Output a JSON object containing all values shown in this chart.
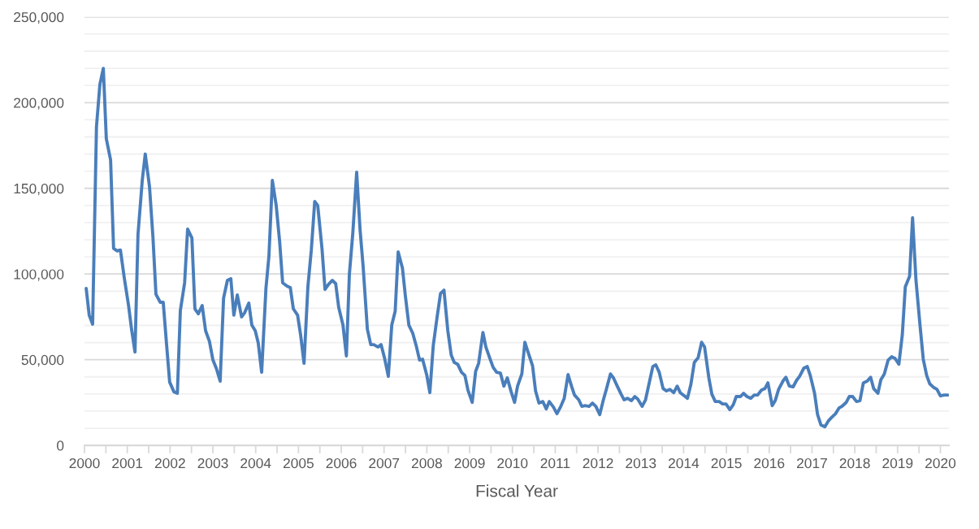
{
  "chart_data": {
    "type": "line",
    "xlabel": "Fiscal Year",
    "xlim": [
      2000,
      2020.2
    ],
    "xticks": [
      2000,
      {
        "value": 2000.5,
        "label": null
      },
      2001,
      {
        "value": 2001.5,
        "label": null
      },
      2002,
      {
        "value": 2002.5,
        "label": null
      },
      2003,
      {
        "value": 2003.5,
        "label": null
      },
      2004,
      {
        "value": 2004.5,
        "label": null
      },
      2005,
      {
        "value": 2005.5,
        "label": null
      },
      2006,
      {
        "value": 2006.5,
        "label": null
      },
      2007,
      {
        "value": 2007.5,
        "label": null
      },
      2008,
      {
        "value": 2008.5,
        "label": null
      },
      2009,
      {
        "value": 2009.5,
        "label": null
      },
      2010,
      {
        "value": 2010.5,
        "label": null
      },
      2011,
      {
        "value": 2011.5,
        "label": null
      },
      2012,
      {
        "value": 2012.5,
        "label": null
      },
      2013,
      {
        "value": 2013.5,
        "label": null
      },
      2014,
      {
        "value": 2014.5,
        "label": null
      },
      2015,
      {
        "value": 2015.5,
        "label": null
      },
      2016,
      {
        "value": 2016.5,
        "label": null
      },
      2017,
      {
        "value": 2017.5,
        "label": null
      },
      2018,
      {
        "value": 2018.5,
        "label": null
      },
      2019,
      {
        "value": 2019.5,
        "label": null
      },
      2020
    ],
    "ylim": [
      0,
      250000
    ],
    "yticks": [
      {
        "value": 0,
        "label": "0"
      },
      {
        "value": 10000,
        "label": null
      },
      {
        "value": 20000,
        "label": null
      },
      {
        "value": 30000,
        "label": null
      },
      {
        "value": 40000,
        "label": null
      },
      {
        "value": 50000,
        "label": "50,000"
      },
      {
        "value": 60000,
        "label": null
      },
      {
        "value": 70000,
        "label": null
      },
      {
        "value": 80000,
        "label": null
      },
      {
        "value": 90000,
        "label": null
      },
      {
        "value": 100000,
        "label": "100,000"
      },
      {
        "value": 110000,
        "label": null
      },
      {
        "value": 120000,
        "label": null
      },
      {
        "value": 130000,
        "label": null
      },
      {
        "value": 140000,
        "label": null
      },
      {
        "value": 150000,
        "label": "150,000"
      },
      {
        "value": 160000,
        "label": null
      },
      {
        "value": 170000,
        "label": null
      },
      {
        "value": 180000,
        "label": null
      },
      {
        "value": 190000,
        "label": null
      },
      {
        "value": 200000,
        "label": "200,000"
      },
      {
        "value": 210000,
        "label": null
      },
      {
        "value": 220000,
        "label": null
      },
      {
        "value": 230000,
        "label": null
      },
      {
        "value": 240000,
        "label": null
      },
      {
        "value": 250000,
        "label": "250,000"
      }
    ],
    "grid": "y",
    "marker": "none",
    "line_style": "solid",
    "series": [
      {
        "color": "#4a7ebb",
        "x": [
          2000.04,
          2000.11,
          2000.19,
          2000.28,
          2000.36,
          2000.44,
          2000.51,
          2000.61,
          2000.68,
          2000.76,
          2000.84,
          2000.93,
          2001.03,
          2001.1,
          2001.18,
          2001.25,
          2001.35,
          2001.42,
          2001.52,
          2001.6,
          2001.67,
          2001.77,
          2001.84,
          2001.92,
          2001.99,
          2002.09,
          2002.17,
          2002.24,
          2002.34,
          2002.41,
          2002.51,
          2002.58,
          2002.66,
          2002.75,
          2002.83,
          2002.92,
          2003.0,
          2003.08,
          2003.17,
          2003.25,
          2003.34,
          2003.42,
          2003.49,
          2003.57,
          2003.67,
          2003.74,
          2003.84,
          2003.91,
          2003.99,
          2004.06,
          2004.14,
          2004.24,
          2004.31,
          2004.39,
          2004.48,
          2004.56,
          2004.63,
          2004.73,
          2004.81,
          2004.88,
          2004.98,
          2005.05,
          2005.13,
          2005.22,
          2005.3,
          2005.38,
          2005.45,
          2005.55,
          2005.62,
          2005.7,
          2005.79,
          2005.87,
          2005.94,
          2006.04,
          2006.12,
          2006.19,
          2006.27,
          2006.36,
          2006.44,
          2006.51,
          2006.61,
          2006.69,
          2006.76,
          2006.86,
          2006.93,
          2007.01,
          2007.1,
          2007.18,
          2007.26,
          2007.33,
          2007.43,
          2007.5,
          2007.58,
          2007.67,
          2007.75,
          2007.83,
          2007.9,
          2008.0,
          2008.07,
          2008.15,
          2008.24,
          2008.32,
          2008.4,
          2008.49,
          2008.57,
          2008.64,
          2008.72,
          2008.81,
          2008.89,
          2008.96,
          2009.06,
          2009.14,
          2009.21,
          2009.31,
          2009.38,
          2009.48,
          2009.55,
          2009.63,
          2009.72,
          2009.8,
          2009.88,
          2009.97,
          2010.05,
          2010.12,
          2010.22,
          2010.29,
          2010.37,
          2010.47,
          2010.54,
          2010.62,
          2010.71,
          2010.79,
          2010.86,
          2010.96,
          2011.04,
          2011.13,
          2011.21,
          2011.3,
          2011.38,
          2011.45,
          2011.55,
          2011.62,
          2011.7,
          2011.79,
          2011.87,
          2011.95,
          2012.04,
          2012.12,
          2012.19,
          2012.29,
          2012.36,
          2012.44,
          2012.54,
          2012.61,
          2012.69,
          2012.78,
          2012.86,
          2012.93,
          2013.03,
          2013.11,
          2013.18,
          2013.28,
          2013.35,
          2013.43,
          2013.52,
          2013.6,
          2013.68,
          2013.77,
          2013.85,
          2013.92,
          2014.02,
          2014.09,
          2014.17,
          2014.25,
          2014.34,
          2014.42,
          2014.49,
          2014.59,
          2014.66,
          2014.74,
          2014.83,
          2014.91,
          2014.99,
          2015.08,
          2015.16,
          2015.23,
          2015.33,
          2015.4,
          2015.48,
          2015.57,
          2015.65,
          2015.73,
          2015.82,
          2015.9,
          2015.97,
          2016.07,
          2016.14,
          2016.22,
          2016.32,
          2016.39,
          2016.47,
          2016.56,
          2016.64,
          2016.71,
          2016.81,
          2016.89,
          2016.96,
          2017.06,
          2017.13,
          2017.21,
          2017.3,
          2017.38,
          2017.45,
          2017.55,
          2017.63,
          2017.7,
          2017.8,
          2017.87,
          2017.95,
          2018.04,
          2018.12,
          2018.2,
          2018.29,
          2018.37,
          2018.44,
          2018.54,
          2018.61,
          2018.69,
          2018.78,
          2018.86,
          2018.94,
          2019.03,
          2019.11,
          2019.18,
          2019.28,
          2019.35,
          2019.43,
          2019.52,
          2019.6,
          2019.68,
          2019.75,
          2019.85,
          2019.92,
          2020.0,
          2020.09,
          2020.17
        ],
        "values": [
          91600,
          76000,
          70700,
          186000,
          210600,
          220000,
          179000,
          166500,
          115000,
          113500,
          114000,
          97700,
          81600,
          67800,
          54500,
          123000,
          154600,
          170000,
          150800,
          121400,
          88200,
          83500,
          83500,
          58300,
          37000,
          31300,
          30400,
          78700,
          94900,
          126200,
          121000,
          79700,
          76800,
          81600,
          66900,
          60700,
          50000,
          45000,
          37500,
          85900,
          96300,
          97300,
          76000,
          87800,
          75000,
          77300,
          83000,
          70200,
          66900,
          59800,
          42700,
          91600,
          110500,
          154600,
          140000,
          119000,
          94900,
          93000,
          92000,
          79700,
          76000,
          64500,
          47900,
          92500,
          113900,
          142300,
          140000,
          114800,
          91000,
          93900,
          96300,
          94400,
          80600,
          70200,
          52200,
          100000,
          123800,
          159400,
          125700,
          104800,
          67800,
          58800,
          58800,
          57400,
          58800,
          51200,
          40300,
          70200,
          78300,
          112900,
          103400,
          86800,
          70200,
          65500,
          58300,
          49800,
          50300,
          40800,
          30800,
          58300,
          75000,
          88700,
          90600,
          66900,
          52700,
          48400,
          47400,
          42700,
          40800,
          32300,
          25100,
          43200,
          47900,
          65900,
          57400,
          50300,
          45500,
          42700,
          42200,
          34600,
          39400,
          31300,
          25100,
          34600,
          41700,
          60200,
          54100,
          46500,
          31800,
          24700,
          25600,
          21300,
          25600,
          22300,
          18500,
          22800,
          27500,
          41300,
          34600,
          29400,
          26600,
          22800,
          23200,
          22800,
          24700,
          22800,
          18000,
          26100,
          32300,
          41700,
          39400,
          35100,
          29900,
          26600,
          27500,
          26100,
          28500,
          27000,
          22800,
          26600,
          34600,
          46000,
          47000,
          42700,
          33200,
          31800,
          32700,
          30800,
          34600,
          30800,
          28900,
          27500,
          35600,
          48400,
          51200,
          60200,
          57400,
          39400,
          29900,
          25600,
          25600,
          24200,
          24200,
          20900,
          23700,
          28500,
          28500,
          30400,
          28500,
          27500,
          29400,
          29400,
          32300,
          33200,
          36500,
          23200,
          26100,
          32700,
          37500,
          39800,
          34600,
          34200,
          38000,
          40300,
          45100,
          46000,
          40800,
          30400,
          18000,
          11900,
          10900,
          14200,
          16100,
          18500,
          21800,
          22800,
          25100,
          28500,
          28500,
          25600,
          26100,
          36500,
          37500,
          39800,
          33200,
          30400,
          38400,
          41700,
          49800,
          51700,
          50800,
          47400,
          64500,
          92500,
          98700,
          132800,
          96300,
          71200,
          50300,
          40800,
          36000,
          33700,
          32700,
          28900,
          29400,
          29400
        ]
      }
    ]
  }
}
